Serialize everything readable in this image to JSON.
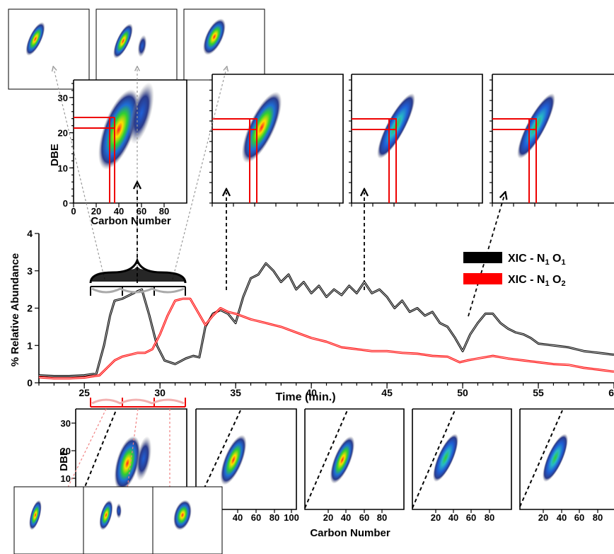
{
  "chart_data": [
    {
      "type": "line",
      "xlabel": "Time (min.)",
      "ylabel": "% Relative Abundance",
      "xlim": [
        22,
        60
      ],
      "ylim": [
        0,
        4
      ],
      "x_ticks": [
        "25",
        "30",
        "35",
        "40",
        "45",
        "50",
        "55",
        "60"
      ],
      "y_ticks": [
        "0",
        "1",
        "2",
        "3",
        "4"
      ],
      "legend_position": "right",
      "series": [
        {
          "name": "XIC - N1 O1",
          "color": "#000000",
          "x": [
            22,
            23,
            24,
            25,
            25.8,
            26.3,
            26.7,
            27.0,
            27.5,
            28.0,
            28.5,
            28.8,
            29.3,
            29.8,
            30.3,
            31.0,
            31.7,
            32.2,
            32.6,
            33.0,
            33.5,
            34.0,
            34.5,
            35.0,
            35.5,
            36.0,
            36.5,
            37.0,
            37.5,
            38.0,
            38.5,
            39.0,
            39.5,
            40.0,
            40.5,
            41.0,
            41.5,
            42.0,
            42.5,
            43.0,
            43.5,
            44.0,
            44.5,
            45.0,
            45.5,
            46.0,
            46.5,
            47.0,
            47.5,
            48.0,
            48.5,
            49.0,
            49.5,
            50.0,
            50.5,
            51.0,
            51.5,
            52.0,
            52.5,
            53.0,
            53.5,
            54.0,
            54.5,
            55.0,
            56.0,
            57.0,
            58.0,
            59.0,
            60.0
          ],
          "y": [
            0.2,
            0.18,
            0.18,
            0.2,
            0.25,
            1.0,
            1.8,
            2.2,
            2.25,
            2.35,
            2.45,
            2.5,
            1.8,
            1.0,
            0.6,
            0.5,
            0.65,
            0.72,
            0.68,
            1.5,
            1.85,
            1.95,
            1.85,
            1.6,
            2.3,
            2.8,
            2.9,
            3.2,
            3.0,
            2.7,
            2.9,
            2.5,
            2.7,
            2.4,
            2.6,
            2.3,
            2.5,
            2.35,
            2.6,
            2.4,
            2.7,
            2.4,
            2.5,
            2.3,
            2.0,
            2.2,
            1.9,
            2.0,
            1.8,
            1.9,
            1.6,
            1.5,
            1.2,
            0.85,
            1.3,
            1.6,
            1.85,
            1.85,
            1.6,
            1.45,
            1.35,
            1.3,
            1.2,
            1.05,
            1.0,
            0.95,
            0.85,
            0.8,
            0.75
          ]
        },
        {
          "name": "XIC - N1 O2",
          "color": "#ff0000",
          "x": [
            22,
            23,
            24,
            25,
            26.0,
            26.5,
            27.0,
            27.5,
            28.0,
            28.5,
            29.0,
            29.5,
            30.0,
            30.5,
            31.0,
            31.5,
            32.0,
            32.5,
            33.0,
            33.5,
            34.0,
            34.5,
            35.0,
            36.0,
            37.0,
            38.0,
            39.0,
            40.0,
            41.0,
            42.0,
            43.0,
            44.0,
            45.0,
            46.0,
            47.0,
            48.0,
            49.0,
            49.8,
            50.3,
            51.0,
            52.0,
            53.0,
            54.0,
            55.0,
            56.0,
            57.0,
            58.0,
            59.0,
            60.0
          ],
          "y": [
            0.15,
            0.12,
            0.12,
            0.14,
            0.2,
            0.4,
            0.6,
            0.7,
            0.75,
            0.8,
            0.8,
            0.9,
            1.3,
            1.8,
            2.2,
            2.25,
            2.25,
            1.9,
            1.55,
            1.8,
            2.0,
            1.9,
            1.85,
            1.7,
            1.6,
            1.5,
            1.35,
            1.2,
            1.1,
            0.95,
            0.9,
            0.85,
            0.85,
            0.8,
            0.78,
            0.72,
            0.7,
            0.55,
            0.6,
            0.65,
            0.72,
            0.65,
            0.6,
            0.55,
            0.5,
            0.48,
            0.4,
            0.35,
            0.3
          ]
        }
      ]
    },
    {
      "type": "heatmap",
      "panel": "top-large",
      "xlabel": "Carbon Number",
      "ylabel": "DBE",
      "xlim": [
        0,
        100
      ],
      "ylim": [
        0,
        35
      ],
      "x_ticks": [
        "0",
        "20",
        "40",
        "60",
        "80"
      ],
      "y_ticks": [
        "0",
        "10",
        "20",
        "30"
      ]
    },
    {
      "type": "heatmap",
      "panel": "bottom-row",
      "xlabel": "Carbon Number",
      "ylabel": "DBE",
      "y_ticks": [
        "10",
        "20",
        "30"
      ],
      "x_ticks": [
        "40",
        "60",
        "80",
        "100",
        "20",
        "40",
        "60",
        "80",
        "20",
        "40",
        "60",
        "80",
        "20",
        "40",
        "60",
        "80"
      ]
    }
  ],
  "legend": {
    "items": [
      {
        "label": "XIC - N",
        "sub1": "1",
        "mid": " O",
        "sub2": "1",
        "color": "#000000"
      },
      {
        "label": "XIC - N",
        "sub1": "1",
        "mid": " O",
        "sub2": "2",
        "color": "#ff0000"
      }
    ]
  }
}
